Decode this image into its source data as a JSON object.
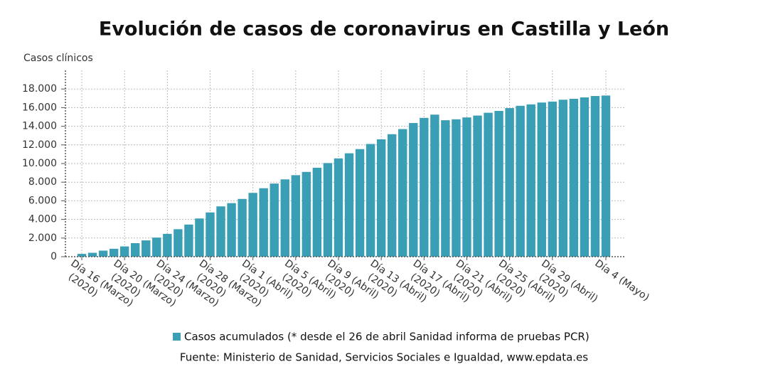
{
  "chart_data": {
    "type": "bar",
    "title": "Evolución de casos de coronavirus en Castilla y León",
    "y_label": "Casos clínicos",
    "source": "Fuente: Ministerio de Sanidad, Servicios Sociales e Igualdad, www.epdata.es",
    "categories": [
      "Día 16 (Marzo)\n(2020)",
      null,
      null,
      null,
      "Día 20 (Marzo)\n(2020)",
      null,
      null,
      null,
      "Día 24 (Marzo)\n(2020)",
      null,
      null,
      null,
      "Día 28 (Marzo)\n(2020)",
      null,
      null,
      null,
      "Día 1 (Abril)\n(2020)",
      null,
      null,
      null,
      "Día 5 (Abril)\n(2020)",
      null,
      null,
      null,
      "Día 9 (Abril)\n(2020)",
      null,
      null,
      null,
      "Día 13 (Abril)\n(2020)",
      null,
      null,
      null,
      "Día 17 (Abril)\n(2020)",
      null,
      null,
      null,
      "Día 21 (Abril)\n(2020)",
      null,
      null,
      null,
      "Día 25 (Abril)\n(2020)",
      null,
      null,
      null,
      "Día 29 (Abril)\n(2020)",
      null,
      null,
      null,
      null,
      "Día 4 (Mayo)"
    ],
    "series": [
      {
        "name": "Casos acumulados (* desde el 26 de abril Sanidad informa de pruebas PCR)",
        "color": "#3a9fb5",
        "values": [
          300,
          420,
          650,
          850,
          1100,
          1450,
          1750,
          2050,
          2450,
          2950,
          3450,
          4100,
          4750,
          5400,
          5750,
          6200,
          6850,
          7350,
          7850,
          8300,
          8750,
          9100,
          9550,
          10050,
          10550,
          11100,
          11550,
          12100,
          12600,
          13150,
          13700,
          14350,
          14900,
          15250,
          14650,
          14750,
          14950,
          15150,
          15450,
          15650,
          15950,
          16200,
          16350,
          16550,
          16650,
          16850,
          16950,
          17100,
          17250,
          17300
        ]
      }
    ],
    "ylim": [
      0,
      20000
    ],
    "yticks": [
      0,
      {
        "value": 2000,
        "label": "2.000"
      },
      {
        "value": 4000,
        "label": "4.000"
      },
      {
        "value": 6000,
        "label": "6.000"
      },
      {
        "value": 8000,
        "label": "8.000"
      },
      {
        "value": 10000,
        "label": "10.000"
      },
      {
        "value": 12000,
        "label": "12.000"
      },
      {
        "value": 14000,
        "label": "14.000"
      },
      {
        "value": 16000,
        "label": "16.000"
      },
      {
        "value": 18000,
        "label": "18.000"
      }
    ],
    "grid": true
  }
}
